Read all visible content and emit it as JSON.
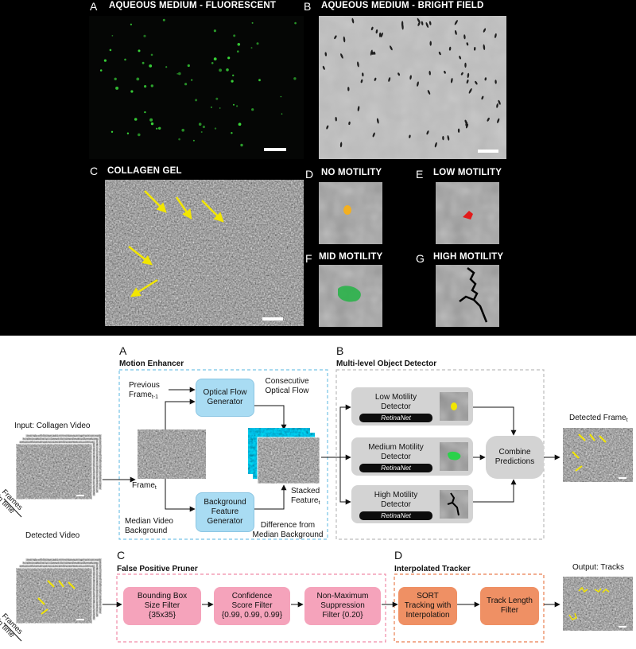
{
  "top_figure": {
    "panels": [
      {
        "letter": "A",
        "title": "AQUEOUS MEDIUM - FLUORESCENT"
      },
      {
        "letter": "B",
        "title": "AQUEOUS MEDIUM - BRIGHT FIELD"
      },
      {
        "letter": "C",
        "title": "COLLAGEN GEL"
      },
      {
        "letter": "D",
        "title": "NO MOTILITY"
      },
      {
        "letter": "E",
        "title": "LOW MOTILITY"
      },
      {
        "letter": "F",
        "title": "MID MOTILITY"
      },
      {
        "letter": "G",
        "title": "HIGH MOTILITY"
      }
    ],
    "colors": {
      "fluorescent_dot": "#39d639",
      "arrow": "#f2e600",
      "no_motility": "#f3b021",
      "low_motility": "#e21a1a",
      "mid_motility": "#2bb34a",
      "high_motility": "#000000"
    }
  },
  "pipeline": {
    "section_a": {
      "letter": "A",
      "title": "Motion Enhancer"
    },
    "section_b": {
      "letter": "B",
      "title": "Multi-level Object Detector"
    },
    "section_c": {
      "letter": "C",
      "title": "False Positive Pruner"
    },
    "section_d": {
      "letter": "D",
      "title": "Interpolated Tracker"
    },
    "input_label": "Input: Collagen Video",
    "frames_label": "Frames\nin time",
    "frames_label_2": "Frames\nin time",
    "frame_t": "Frame",
    "frame_t_sub": "t",
    "previous_frame": "Previous\nFrame",
    "previous_frame_sub": "t-1",
    "median_background": "Median  Video\nBackground",
    "optical_flow_generator": "Optical Flow\nGenerator",
    "background_feature_generator": "Background\nFeature\nGenerator",
    "consecutive_optical_flow": "Consecutive\nOptical Flow",
    "difference_from_median": "Difference from\nMedian Background",
    "stacked_feature": "Stacked\nFeature",
    "stacked_feature_sub": "t",
    "detectors": [
      {
        "label": "Low Motility\nDetector",
        "model": "RetinaNet"
      },
      {
        "label": "Medium Motility\nDetector",
        "model": "RetinaNet"
      },
      {
        "label": "High Motility\nDetector",
        "model": "RetinaNet"
      }
    ],
    "combine_predictions": "Combine\nPredictions",
    "detected_frame": "Detected Frame",
    "detected_frame_sub": "t",
    "detected_video": "Detected Video",
    "pruner_boxes": [
      "Bounding Box\nSize Filter\n{35x35}",
      "Confidence\nScore Filter\n{0.99, 0.99, 0.99}",
      "Non-Maximum\nSuppression\nFilter  {0.20}"
    ],
    "tracker_boxes": [
      "SORT\nTracking with\nInterpolation",
      "Track Length\nFilter"
    ],
    "output_label": "Output: Tracks",
    "colors": {
      "blue_box": "#a9dcf3",
      "pink_box": "#f5a3bb",
      "orange_box": "#ef9064",
      "gray_box": "#d3d3d3",
      "blue_dash": "#76c3e6",
      "pink_dash": "#f08aa6",
      "orange_dash": "#ea7e4f",
      "gray_dash": "#bcbcbc"
    }
  }
}
